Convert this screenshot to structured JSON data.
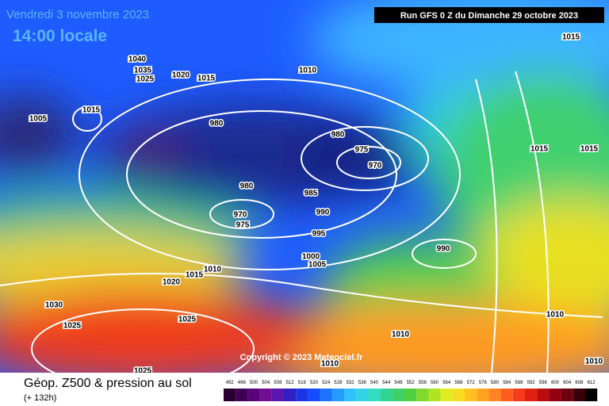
{
  "header": {
    "date": "Vendredi 3 novembre 2023",
    "time": "14:00 locale",
    "run": "Run GFS 0 Z du Dimanche 29 octobre 2023"
  },
  "copyright": "Copyright © 2023 Meteociel.fr",
  "footer": {
    "title": "Géop. Z500 & pression au sol",
    "lead": "(+ 132h)"
  },
  "scale": {
    "labels": [
      492,
      496,
      500,
      504,
      508,
      512,
      516,
      520,
      524,
      528,
      532,
      536,
      540,
      544,
      548,
      552,
      556,
      560,
      564,
      568,
      572,
      576,
      580,
      584,
      588,
      592,
      596,
      600,
      604,
      608,
      612
    ]
  },
  "isobars": [
    1015,
    1010,
    1040,
    1035,
    1025,
    1020,
    1015,
    1015,
    1005,
    980,
    980,
    975,
    970,
    980,
    985,
    990,
    970,
    975,
    995,
    1000,
    1005,
    990,
    1015,
    1015,
    1010,
    1015,
    1020,
    1030,
    1025,
    1025,
    1010,
    1010,
    1010,
    1010,
    1025
  ]
}
